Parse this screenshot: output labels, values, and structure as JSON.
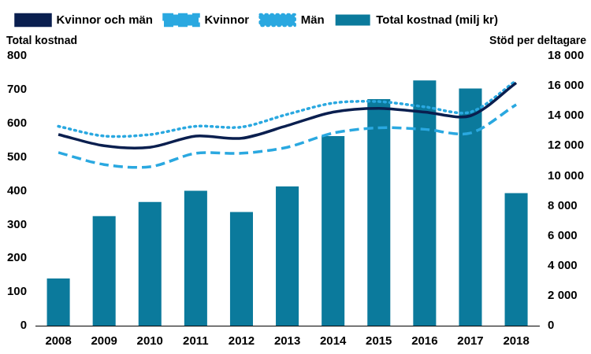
{
  "chart_data": {
    "type": "bar",
    "ylabel": "Total kostnad",
    "y2label": "Stöd per deltagare",
    "categories": [
      "2008",
      "2009",
      "2010",
      "2011",
      "2012",
      "2013",
      "2014",
      "2015",
      "2016",
      "2017",
      "2018"
    ],
    "series": [
      {
        "name": "Total kostnad (milj kr)",
        "type": "bar",
        "color": "#0b7a9c",
        "values": [
          140,
          325,
          367,
          400,
          337,
          413,
          562,
          672,
          727,
          703,
          393
        ]
      },
      {
        "name": "Kvinnor och män",
        "type": "line",
        "axis": "y2",
        "color": "#0a1f4f",
        "line_style": "solid",
        "values": [
          12750,
          12000,
          11900,
          12650,
          12500,
          13350,
          14250,
          14500,
          14250,
          14000,
          16200
        ]
      },
      {
        "name": "Kvinnor",
        "type": "line",
        "axis": "y2",
        "color": "#2aa8e0",
        "line_style": "dashed",
        "values": [
          11550,
          10750,
          10600,
          11500,
          11500,
          11900,
          12850,
          13200,
          13100,
          12850,
          14750
        ]
      },
      {
        "name": "Män",
        "type": "line",
        "axis": "y2",
        "color": "#2aa8e0",
        "line_style": "dotted",
        "values": [
          13300,
          12650,
          12750,
          13300,
          13250,
          14100,
          14850,
          14950,
          14600,
          14250,
          16350
        ]
      }
    ],
    "ylim": [
      0,
      800
    ],
    "yticks": [
      0,
      100,
      200,
      300,
      400,
      500,
      600,
      700,
      800
    ],
    "y2lim": [
      0,
      18000
    ],
    "y2ticks": [
      0,
      {
        "value": 2000,
        "label": "2 000"
      },
      {
        "value": 4000,
        "label": "4 000"
      },
      {
        "value": 6000,
        "label": "6 000"
      },
      {
        "value": 8000,
        "label": "8 000"
      },
      {
        "value": 10000,
        "label": "10 000"
      },
      {
        "value": 12000,
        "label": "12 000"
      },
      {
        "value": 14000,
        "label": "14 000"
      },
      {
        "value": 16000,
        "label": "16 000"
      },
      {
        "value": 18000,
        "label": "18 000"
      }
    ],
    "grid": false,
    "legend": "top"
  }
}
